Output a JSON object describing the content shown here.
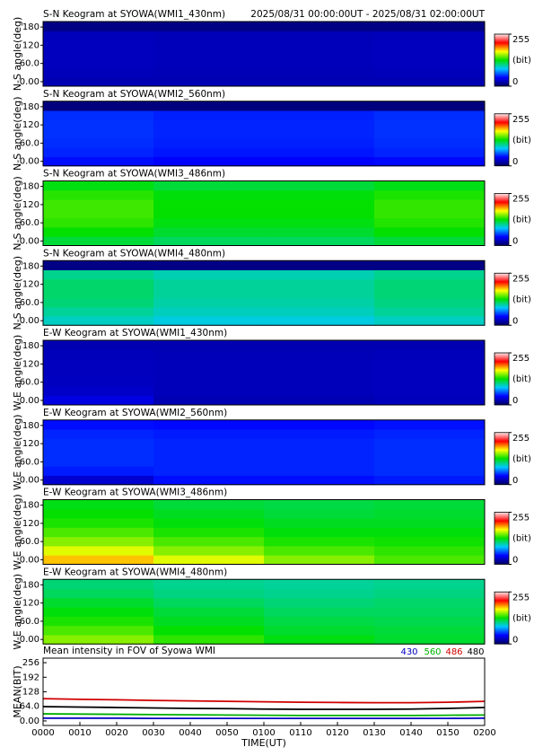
{
  "chart_data": [
    {
      "type": "keogram",
      "title": "S-N Keogram at SYOWA(WMI1_430nm)",
      "subtitle": "2025/08/31 00:00:00UT - 2025/08/31 02:00:00UT",
      "ylabel": "N-S angle(deg)",
      "ylim": [
        -15,
        198
      ],
      "yticks": [
        {
          "value": 0,
          "label": "0.00"
        },
        {
          "value": 60,
          "label": "60.0"
        },
        120,
        180
      ],
      "zlim": [
        0,
        255
      ],
      "zticks": [
        0,
        255
      ],
      "zlabel": "(bit)",
      "colormap": [
        "#000060",
        "#0000ff",
        "#00c8ff",
        "#00e000",
        "#ffff00",
        "#ff0000",
        "#ffe8e8"
      ],
      "z": [
        [
          22,
          22,
          22,
          22
        ],
        [
          24,
          23,
          23,
          24
        ],
        [
          25,
          24,
          24,
          25
        ],
        [
          25,
          24,
          24,
          25
        ],
        [
          25,
          24,
          24,
          25
        ],
        [
          24,
          23,
          23,
          24
        ],
        [
          10,
          10,
          10,
          10
        ]
      ]
    },
    {
      "type": "keogram",
      "title": "S-N Keogram at SYOWA(WMI2_560nm)",
      "ylabel": "N-S angle(deg)",
      "ylim": [
        -15,
        198
      ],
      "yticks": [
        {
          "value": 0,
          "label": "0.00"
        },
        {
          "value": 60,
          "label": "60.0"
        },
        120,
        180
      ],
      "zlim": [
        0,
        255
      ],
      "zticks": [
        0,
        255
      ],
      "zlabel": "(bit)",
      "colormap": [
        "#000060",
        "#0000ff",
        "#00c8ff",
        "#00e000",
        "#ffff00",
        "#ff0000",
        "#ffe8e8"
      ],
      "z": [
        [
          45,
          42,
          42,
          44
        ],
        [
          50,
          47,
          47,
          50
        ],
        [
          52,
          49,
          49,
          52
        ],
        [
          53,
          50,
          50,
          53
        ],
        [
          53,
          50,
          50,
          53
        ],
        [
          52,
          49,
          49,
          52
        ],
        [
          8,
          8,
          8,
          8
        ]
      ]
    },
    {
      "type": "keogram",
      "title": "S-N Keogram at SYOWA(WMI3_486nm)",
      "ylabel": "N-S angle(deg)",
      "ylim": [
        -15,
        198
      ],
      "yticks": [
        {
          "value": 0,
          "label": "0.00"
        },
        {
          "value": 60,
          "label": "60.0"
        },
        120,
        180
      ],
      "zlim": [
        0,
        255
      ],
      "zticks": [
        0,
        255
      ],
      "zlabel": "(bit)",
      "colormap": [
        "#000060",
        "#0000ff",
        "#00c8ff",
        "#00e000",
        "#ffff00",
        "#ff0000",
        "#ffe8e8"
      ],
      "z": [
        [
          118,
          112,
          112,
          118
        ],
        [
          128,
          120,
          120,
          128
        ],
        [
          135,
          125,
          125,
          133
        ],
        [
          138,
          128,
          128,
          136
        ],
        [
          138,
          128,
          128,
          136
        ],
        [
          134,
          126,
          126,
          132
        ],
        [
          125,
          118,
          118,
          124
        ]
      ]
    },
    {
      "type": "keogram",
      "title": "S-N Keogram at SYOWA(WMI4_480nm)",
      "ylabel": "N-S angle(deg)",
      "ylim": [
        -15,
        198
      ],
      "yticks": [
        {
          "value": 0,
          "label": "0.00"
        },
        {
          "value": 60,
          "label": "60.0"
        },
        120,
        180
      ],
      "zlim": [
        0,
        255
      ],
      "zticks": [
        0,
        255
      ],
      "zlabel": "(bit)",
      "colormap": [
        "#000060",
        "#0000ff",
        "#00c8ff",
        "#00e000",
        "#ffff00",
        "#ff0000",
        "#ffe8e8"
      ],
      "z": [
        [
          95,
          90,
          90,
          95
        ],
        [
          102,
          96,
          96,
          102
        ],
        [
          108,
          100,
          100,
          106
        ],
        [
          110,
          102,
          102,
          108
        ],
        [
          110,
          102,
          102,
          108
        ],
        [
          104,
          98,
          98,
          104
        ],
        [
          10,
          10,
          10,
          10
        ]
      ]
    },
    {
      "type": "keogram",
      "title": "E-W Keogram at SYOWA(WMI1_430nm)",
      "ylabel": "W-E angle(deg)",
      "ylim": [
        -15,
        198
      ],
      "yticks": [
        {
          "value": 0,
          "label": "0.00"
        },
        {
          "value": 60,
          "label": "60.0"
        },
        120,
        180
      ],
      "zlim": [
        0,
        255
      ],
      "zticks": [
        0,
        255
      ],
      "zlabel": "(bit)",
      "colormap": [
        "#000060",
        "#0000ff",
        "#00c8ff",
        "#00e000",
        "#ffff00",
        "#ff0000",
        "#ffe8e8"
      ],
      "z": [
        [
          35,
          22,
          22,
          24
        ],
        [
          28,
          24,
          24,
          25
        ],
        [
          26,
          24,
          24,
          25
        ],
        [
          25,
          24,
          24,
          25
        ],
        [
          25,
          24,
          24,
          25
        ],
        [
          24,
          23,
          23,
          24
        ],
        [
          22,
          22,
          22,
          22
        ]
      ]
    },
    {
      "type": "keogram",
      "title": "E-W Keogram at SYOWA(WMI2_560nm)",
      "ylabel": "W-E angle(deg)",
      "ylim": [
        -15,
        198
      ],
      "yticks": [
        {
          "value": 0,
          "label": "0.00"
        },
        {
          "value": 60,
          "label": "60.0"
        },
        120,
        180
      ],
      "zlim": [
        0,
        255
      ],
      "zticks": [
        0,
        255
      ],
      "zlabel": "(bit)",
      "colormap": [
        "#000060",
        "#0000ff",
        "#00c8ff",
        "#00e000",
        "#ffff00",
        "#ff0000",
        "#ffe8e8"
      ],
      "z": [
        [
          30,
          45,
          45,
          48
        ],
        [
          48,
          50,
          50,
          52
        ],
        [
          52,
          50,
          50,
          52
        ],
        [
          52,
          50,
          50,
          52
        ],
        [
          52,
          50,
          50,
          52
        ],
        [
          50,
          48,
          48,
          50
        ],
        [
          45,
          44,
          44,
          46
        ]
      ]
    },
    {
      "type": "keogram",
      "title": "E-W Keogram at SYOWA(WMI3_486nm)",
      "ylabel": "W-E angle(deg)",
      "ylim": [
        -15,
        198
      ],
      "yticks": [
        {
          "value": 0,
          "label": "0.00"
        },
        {
          "value": 60,
          "label": "60.0"
        },
        120,
        180
      ],
      "zlim": [
        0,
        255
      ],
      "zticks": [
        0,
        255
      ],
      "zlabel": "(bit)",
      "colormap": [
        "#000060",
        "#0000ff",
        "#00c8ff",
        "#00e000",
        "#ffff00",
        "#ff0000",
        "#ffe8e8"
      ],
      "z": [
        [
          180,
          165,
          150,
          140
        ],
        [
          165,
          150,
          140,
          135
        ],
        [
          150,
          140,
          132,
          130
        ],
        [
          140,
          132,
          126,
          126
        ],
        [
          132,
          126,
          122,
          122
        ],
        [
          128,
          122,
          118,
          120
        ],
        [
          124,
          118,
          116,
          118
        ]
      ]
    },
    {
      "type": "keogram",
      "title": "E-W Keogram at SYOWA(WMI4_480nm)",
      "ylabel": "W-E angle(deg)",
      "ylim": [
        -15,
        198
      ],
      "yticks": [
        {
          "value": 0,
          "label": "0.00"
        },
        {
          "value": 60,
          "label": "60.0"
        },
        120,
        180
      ],
      "zlim": [
        0,
        255
      ],
      "zticks": [
        0,
        255
      ],
      "zlabel": "(bit)",
      "colormap": [
        "#000060",
        "#0000ff",
        "#00c8ff",
        "#00e000",
        "#ffff00",
        "#ff0000",
        "#ffe8e8"
      ],
      "z": [
        [
          150,
          135,
          125,
          120
        ],
        [
          140,
          128,
          120,
          118
        ],
        [
          132,
          122,
          116,
          115
        ],
        [
          126,
          118,
          112,
          112
        ],
        [
          120,
          112,
          108,
          110
        ],
        [
          112,
          106,
          104,
          106
        ],
        [
          108,
          104,
          102,
          104
        ]
      ]
    },
    {
      "type": "line",
      "title": "Mean intensity in FOV of Syowa WMI",
      "xlabel": "TIME(UT)",
      "ylabel": "MEAN(BIT)",
      "x": [
        0,
        10,
        20,
        30,
        40,
        50,
        60,
        70,
        80,
        90,
        100,
        110,
        120
      ],
      "xlim": [
        0,
        120
      ],
      "xticks": [
        {
          "value": 0,
          "label": "0000"
        },
        {
          "value": 10,
          "label": "0010"
        },
        {
          "value": 20,
          "label": "0020"
        },
        {
          "value": 30,
          "label": "0030"
        },
        {
          "value": 40,
          "label": "0040"
        },
        {
          "value": 50,
          "label": "0050"
        },
        {
          "value": 60,
          "label": "0100"
        },
        {
          "value": 70,
          "label": "0110"
        },
        {
          "value": 80,
          "label": "0120"
        },
        {
          "value": 90,
          "label": "0130"
        },
        {
          "value": 100,
          "label": "0140"
        },
        {
          "value": 110,
          "label": "0150"
        },
        {
          "value": 120,
          "label": "0200"
        }
      ],
      "ylim": [
        -20,
        276
      ],
      "yticks": [
        {
          "value": 0,
          "label": "0.00"
        },
        {
          "value": 64,
          "label": "64.0"
        },
        128,
        192,
        256
      ],
      "series": [
        {
          "name": "430",
          "color": "#0000c0",
          "values": [
            12,
            12,
            12,
            11,
            11,
            11,
            11,
            11,
            11,
            11,
            11,
            11,
            12
          ]
        },
        {
          "name": "560",
          "color": "#00b000",
          "values": [
            31,
            30,
            29,
            28,
            27,
            26,
            25,
            24,
            24,
            24,
            24,
            25,
            26
          ]
        },
        {
          "name": "486",
          "color": "#d00000",
          "values": [
            98,
            95,
            93,
            90,
            88,
            86,
            84,
            82,
            81,
            80,
            80,
            82,
            86
          ]
        },
        {
          "name": "480",
          "color": "#000000",
          "values": [
            63,
            61,
            59,
            57,
            55,
            54,
            52,
            51,
            51,
            51,
            52,
            55,
            59
          ]
        }
      ]
    }
  ]
}
